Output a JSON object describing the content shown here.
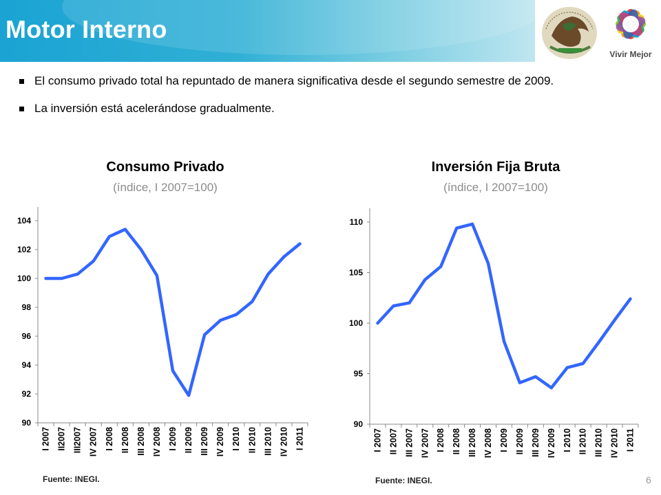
{
  "header": {
    "title": "Motor Interno"
  },
  "logos": {
    "vivir_mejor": "Vivir Mejor",
    "seal_text": "ESTADOS UNIDOS MEXICANOS"
  },
  "bullets": [
    "El consumo privado total ha repuntado de manera significativa desde el segundo semestre de 2009.",
    "La inversión está acelerándose gradualmente."
  ],
  "colors": {
    "line": "#3366ff",
    "header": "#1aa3d3"
  },
  "chart_data": [
    {
      "type": "line",
      "title": "Consumo Privado",
      "subtitle": "(índice, I 2007=100)",
      "categories": [
        "I 2007",
        "II2007",
        "III2007",
        "IV 2007",
        "I 2008",
        "II 2008",
        "III 2008",
        "IV 2008",
        "I 2009",
        "II 2009",
        "III 2009",
        "IV 2009",
        "I 2010",
        "II 2010",
        "III 2010",
        "IV 2010",
        "I 2011"
      ],
      "series": [
        {
          "values": [
            100.0,
            100.0,
            100.3,
            101.2,
            102.9,
            103.4,
            102.0,
            100.2,
            93.6,
            91.9,
            96.1,
            97.1,
            97.5,
            98.4,
            100.3,
            101.5,
            102.4
          ]
        }
      ],
      "ylim": [
        90,
        104
      ],
      "yticks": [
        90,
        92,
        94,
        96,
        98,
        100,
        102,
        104
      ],
      "source": "Fuente: INEGI."
    },
    {
      "type": "line",
      "title": "Inversión Fija Bruta",
      "subtitle": "(índice, I 2007=100)",
      "categories": [
        "I 2007",
        "II 2007",
        "III 2007",
        "IV 2007",
        "I 2008",
        "II 2008",
        "III 2008",
        "IV 2008",
        "I 2009",
        "II 2009",
        "III 2009",
        "IV 2009",
        "I 2010",
        "II 2010",
        "III 2010",
        "IV 2010",
        "I 2011"
      ],
      "series": [
        {
          "values": [
            100.0,
            101.7,
            102.0,
            104.3,
            105.6,
            109.4,
            109.8,
            105.9,
            98.2,
            94.1,
            94.7,
            93.6,
            95.6,
            96.0,
            98.1,
            100.3,
            102.4
          ]
        }
      ],
      "ylim": [
        90,
        110
      ],
      "yticks": [
        90,
        95,
        100,
        105,
        110
      ],
      "source": "Fuente: INEGI."
    }
  ],
  "page_number": "6"
}
